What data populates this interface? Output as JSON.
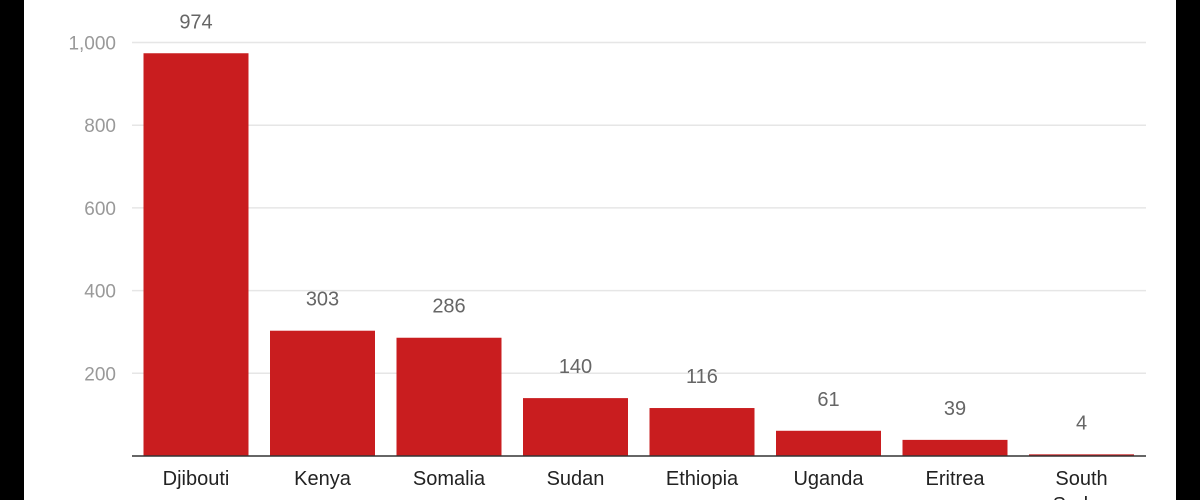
{
  "colors": {
    "bar": "#c91d1f",
    "grid": "#e6e6e6",
    "axis": "#333333",
    "frame": "#000000",
    "background": "#ffffff"
  },
  "chart_data": {
    "type": "bar",
    "categories": [
      "Djibouti",
      "Kenya",
      "Somalia",
      "Sudan",
      "Ethiopia",
      "Uganda",
      "Eritrea",
      "South Sudan"
    ],
    "values": [
      974,
      303,
      286,
      140,
      116,
      61,
      39,
      4
    ],
    "data_labels": [
      "974",
      "303",
      "286",
      "140",
      "116",
      "61",
      "39",
      "4"
    ],
    "y_ticks": [
      200,
      400,
      600,
      800,
      1000
    ],
    "y_tick_labels": [
      "200",
      "400",
      "600",
      "800",
      "1,000"
    ],
    "ylim": [
      0,
      1000
    ],
    "grid": true,
    "legend": "none"
  }
}
